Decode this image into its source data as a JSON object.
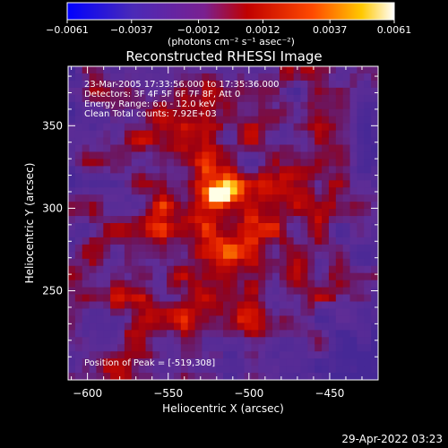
{
  "chart_data": {
    "type": "heatmap",
    "title": "Reconstructed RHESSI Image",
    "xlabel": "Heliocentric X (arcsec)",
    "ylabel": "Heliocentric Y (arcsec)",
    "xlim": [
      -612,
      -420
    ],
    "ylim": [
      196,
      386
    ],
    "xticks": [
      -600,
      -550,
      -500,
      -450
    ],
    "yticks": [
      250,
      300,
      350
    ],
    "colorbar": {
      "range": [
        -0.0061,
        0.0061
      ],
      "ticks": [
        -0.0061,
        -0.0037,
        -0.0012,
        0.0012,
        0.0037,
        0.0061
      ],
      "tick_labels": [
        "−0.0061",
        "−0.0037",
        "−0.0012",
        "0.0012",
        "0.0037",
        "0.0061"
      ],
      "unit_label": "(photons cm⁻² s⁻¹ asec⁻²)",
      "colors": [
        "#0000ff",
        "#5a3ab0",
        "#8a2090",
        "#c00000",
        "#ff5000",
        "#ffd000",
        "#ffffff"
      ]
    },
    "annotations": [
      "23-Mar-2005 17:33:56.000 to 17:35:36.000",
      "Detectors: 3F 4F 5F 6F 7F 8F, Att 0",
      "Energy Range: 6.0 - 12.0 keV",
      "Clean     Total counts: 7.92E+03"
    ],
    "peak_label": "Position of Peak = [-519,308]",
    "peak": {
      "x": -519,
      "y": 308
    }
  },
  "timestamp": "29-Apr-2022 03:23"
}
